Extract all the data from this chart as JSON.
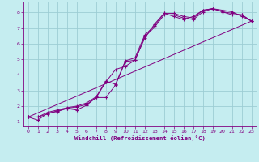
{
  "xlabel": "Windchill (Refroidissement éolien,°C)",
  "bg_color": "#c5edf0",
  "line_color": "#800080",
  "grid_color": "#9dcdd4",
  "xlim": [
    -0.5,
    23.5
  ],
  "ylim": [
    0.7,
    8.7
  ],
  "xticks": [
    0,
    1,
    2,
    3,
    4,
    5,
    6,
    7,
    8,
    9,
    10,
    11,
    12,
    13,
    14,
    15,
    16,
    17,
    18,
    19,
    20,
    21,
    22,
    23
  ],
  "yticks": [
    1,
    2,
    3,
    4,
    5,
    6,
    7,
    8
  ],
  "lines": [
    {
      "x": [
        0,
        1,
        2,
        3,
        4,
        5,
        6,
        7,
        8,
        9,
        10,
        11,
        12,
        13,
        14,
        15,
        16,
        17,
        18,
        19,
        20,
        21,
        22,
        23
      ],
      "y": [
        1.3,
        1.3,
        1.5,
        1.7,
        1.85,
        1.95,
        2.1,
        2.55,
        2.55,
        3.35,
        4.85,
        4.95,
        6.45,
        7.05,
        7.85,
        7.85,
        7.65,
        7.55,
        8.05,
        8.25,
        8.05,
        7.95,
        7.85,
        7.45
      ],
      "marker": true
    },
    {
      "x": [
        0,
        1,
        2,
        3,
        4,
        5,
        6,
        7,
        8,
        9,
        10,
        11,
        12,
        13,
        14,
        15,
        16,
        17,
        18,
        19,
        20,
        21,
        22,
        23
      ],
      "y": [
        1.3,
        1.3,
        1.6,
        1.75,
        1.9,
        2.0,
        2.2,
        2.6,
        3.6,
        3.4,
        4.9,
        5.1,
        6.55,
        7.15,
        7.95,
        7.95,
        7.75,
        7.65,
        8.15,
        8.25,
        8.15,
        8.05,
        7.75,
        7.45
      ],
      "marker": true
    },
    {
      "x": [
        0,
        1,
        2,
        3,
        4,
        5,
        6,
        7,
        8,
        9,
        10,
        11,
        12,
        13,
        14,
        15,
        16,
        17,
        18,
        19,
        20,
        21,
        22,
        23
      ],
      "y": [
        1.3,
        1.1,
        1.55,
        1.65,
        1.85,
        1.75,
        2.05,
        2.55,
        3.55,
        4.35,
        4.55,
        4.95,
        6.35,
        7.25,
        7.95,
        7.75,
        7.55,
        7.75,
        8.15,
        8.25,
        8.05,
        7.85,
        7.85,
        7.45
      ],
      "marker": true
    },
    {
      "x": [
        0,
        23
      ],
      "y": [
        1.3,
        7.45
      ],
      "marker": false
    }
  ]
}
